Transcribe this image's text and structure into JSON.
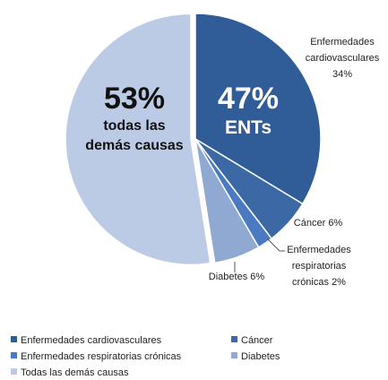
{
  "chart_data": {
    "type": "pie",
    "categories": [
      "Enfermedades cardiovasculares",
      "Cáncer",
      "Enfermedades respiratorias crónicas",
      "Diabetes",
      "Todas las demás causas"
    ],
    "values": [
      34,
      6,
      2,
      6,
      53
    ],
    "value_labels": [
      "34%",
      "6%",
      "2%",
      "6%",
      "53%"
    ],
    "colors": [
      "#305c98",
      "#3c69a6",
      "#4a7bc2",
      "#8fa9d2",
      "#bccbe5"
    ],
    "exploded": [
      false,
      false,
      false,
      false,
      true
    ],
    "group_label": {
      "value": 47,
      "label": "47%",
      "name": "ENTs"
    },
    "inner_label": "todas las demás causas"
  }
}
